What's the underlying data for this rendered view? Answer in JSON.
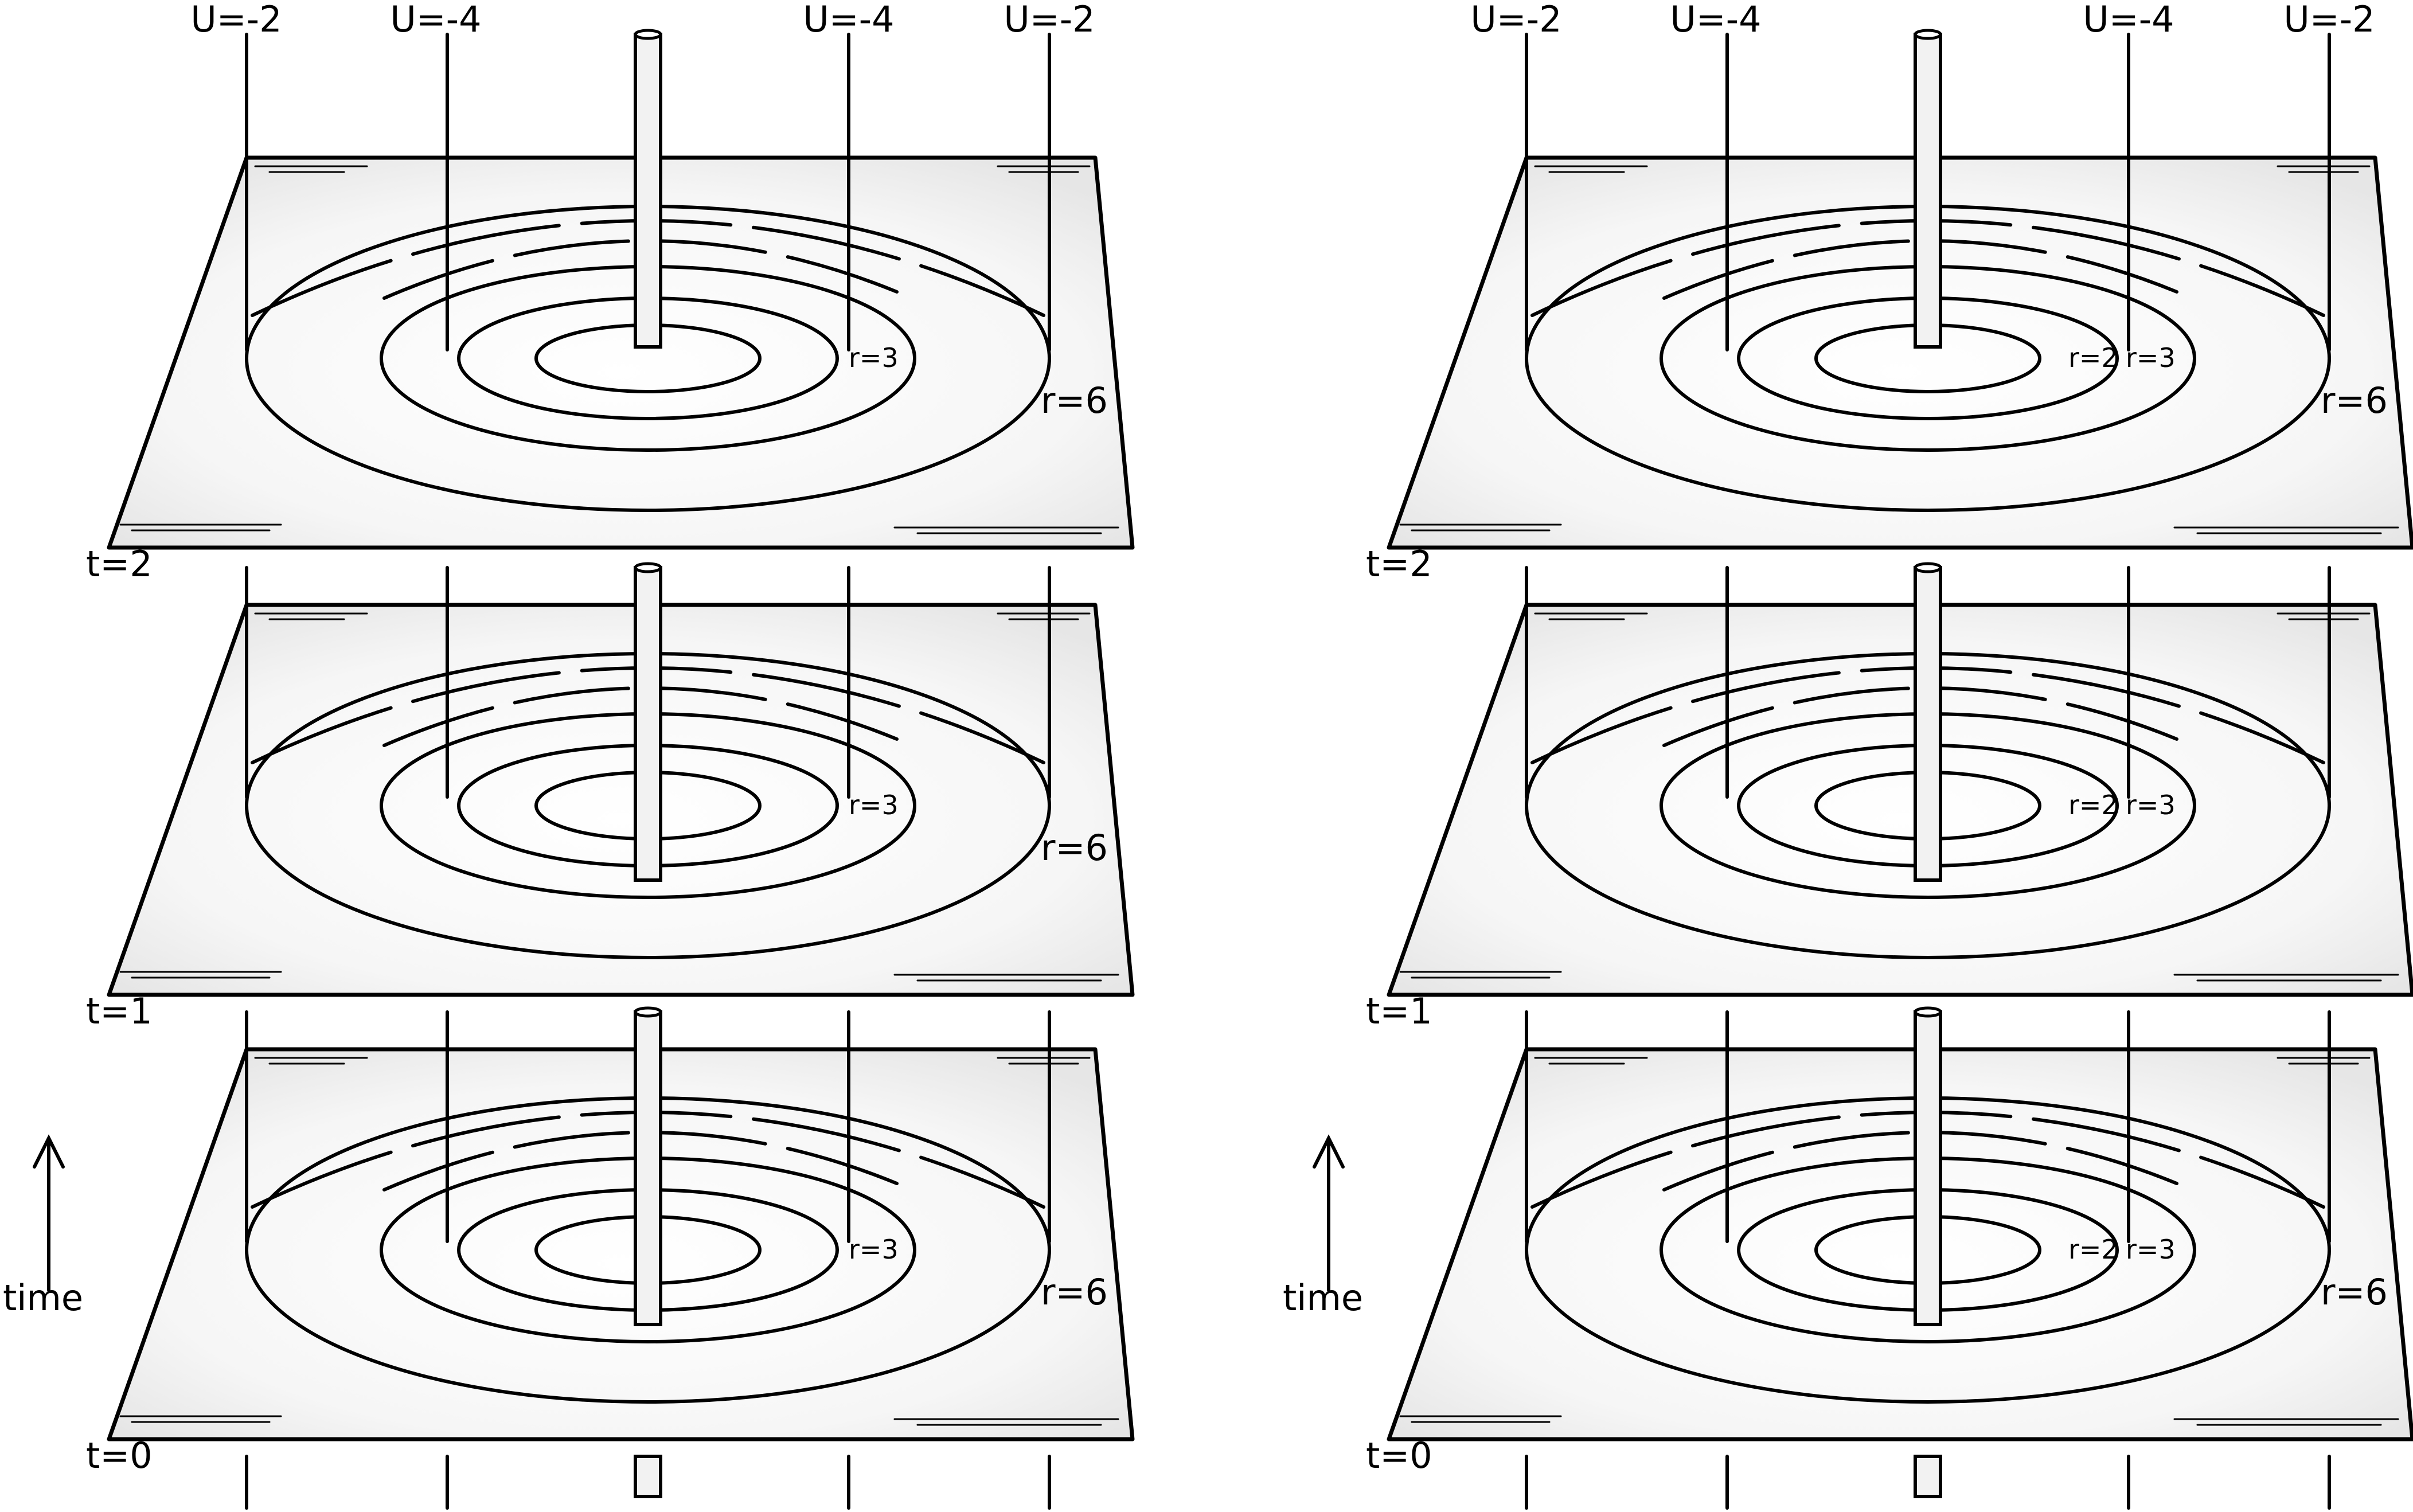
{
  "panels": [
    {
      "id": "left",
      "top_labels": [
        "U=-2",
        "U=-4",
        "U=-4",
        "U=-2"
      ],
      "time_label": "time",
      "layers": [
        {
          "t": "t=2",
          "r_outer": "r=6",
          "r_inner": [
            "r=3"
          ]
        },
        {
          "t": "t=1",
          "r_outer": "r=6",
          "r_inner": [
            "r=3"
          ]
        },
        {
          "t": "t=0",
          "r_outer": "r=6",
          "r_inner": [
            "r=3"
          ]
        }
      ]
    },
    {
      "id": "right",
      "top_labels": [
        "U=-2",
        "U=-4",
        "U=-4",
        "U=-2"
      ],
      "time_label": "time",
      "layers": [
        {
          "t": "t=2",
          "r_outer": "r=6",
          "r_inner": [
            "r=2",
            "r=3"
          ]
        },
        {
          "t": "t=1",
          "r_outer": "",
          "r_inner": [
            "r=2",
            "r=3"
          ]
        },
        {
          "t": "t=0",
          "r_outer": "r=6",
          "r_inner": [
            "r=2",
            "r=3"
          ]
        }
      ]
    }
  ]
}
